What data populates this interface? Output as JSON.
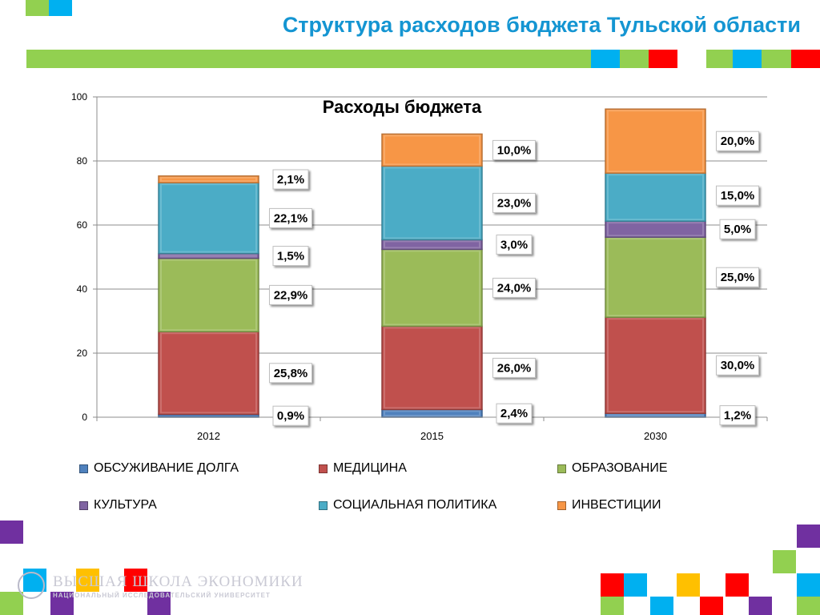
{
  "header": {
    "title": "Структура расходов бюджета Тульской области"
  },
  "colors": {
    "brand_blue": "#1495d2",
    "green": "#92d050",
    "cyan": "#00b0f0",
    "red": "#ff0000",
    "purple": "#7030a0",
    "yellow": "#ffc000",
    "white": "#ffffff"
  },
  "chart_data": {
    "type": "bar",
    "stacked": true,
    "title": "Расходы бюджета",
    "categories": [
      "2012",
      "2015",
      "2030"
    ],
    "ylim": [
      0,
      100
    ],
    "yticks": [
      "0",
      "20",
      "40",
      "60",
      "80",
      "100"
    ],
    "grid": true,
    "legend_position": "bottom",
    "series": [
      {
        "name": "ОБСУЖИВАНИЕ ДОЛГА",
        "color": "#4f81bd",
        "values": [
          0.9,
          2.4,
          1.2
        ],
        "labels": [
          "0,9%",
          "2,4%",
          "1,2%"
        ]
      },
      {
        "name": "МЕДИЦИНА",
        "color": "#c0504d",
        "values": [
          25.8,
          26.0,
          30.0
        ],
        "labels": [
          "25,8%",
          "26,0%",
          "30,0%"
        ]
      },
      {
        "name": "ОБРАЗОВАНИЕ",
        "color": "#9bbb59",
        "values": [
          22.9,
          24.0,
          25.0
        ],
        "labels": [
          "22,9%",
          "24,0%",
          "25,0%"
        ]
      },
      {
        "name": "КУЛЬТУРА",
        "color": "#8064a2",
        "values": [
          1.5,
          3.0,
          5.0
        ],
        "labels": [
          "1,5%",
          "3,0%",
          "5,0%"
        ]
      },
      {
        "name": "СОЦИАЛЬНАЯ ПОЛИТИКА",
        "color": "#4bacc6",
        "values": [
          22.1,
          23.0,
          15.0
        ],
        "labels": [
          "22,1%",
          "23,0%",
          "15,0%"
        ]
      },
      {
        "name": "ИНВЕСТИЦИИ",
        "color": "#f79646",
        "values": [
          2.1,
          10.0,
          20.0
        ],
        "labels": [
          "2,1%",
          "10,0%",
          "20,0%"
        ]
      }
    ]
  },
  "logo": {
    "name": "ВЫСШАЯ ШКОЛА ЭКОНОМИКИ",
    "subtitle": "НАЦИОНАЛЬНЫЙ ИССЛЕДОВАТЕЛЬСКИЙ УНИВЕРСИТЕТ"
  }
}
